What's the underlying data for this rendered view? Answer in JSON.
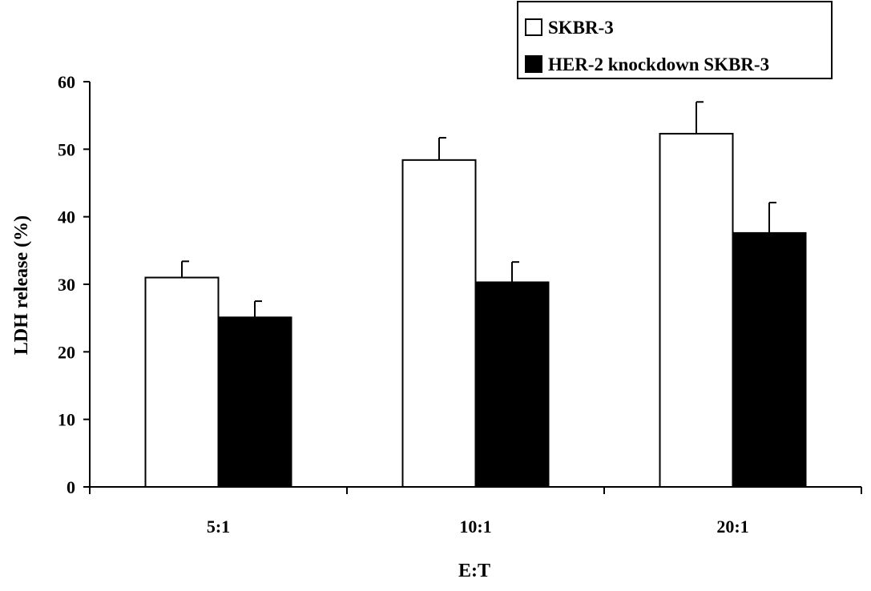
{
  "chart_data": {
    "type": "bar",
    "title": "",
    "xlabel": "E:T",
    "ylabel": "LDH release (%)",
    "ylim": [
      0,
      60
    ],
    "yticks": [
      "0",
      "10",
      "20",
      "30",
      "40",
      "50",
      "60"
    ],
    "categories": [
      "5:1",
      "10:1",
      "20:1"
    ],
    "series": [
      {
        "name": "SKBR-3",
        "color": "#ffffff",
        "values": [
          31.0,
          48.4,
          52.3
        ],
        "errors": [
          2.4,
          3.3,
          4.7
        ]
      },
      {
        "name": "HER-2 knockdown SKBR-3",
        "color": "#000000",
        "values": [
          25.1,
          30.3,
          37.6
        ],
        "errors": [
          2.4,
          3.0,
          4.5
        ]
      }
    ],
    "grid": false,
    "legend_position": "top-right"
  }
}
